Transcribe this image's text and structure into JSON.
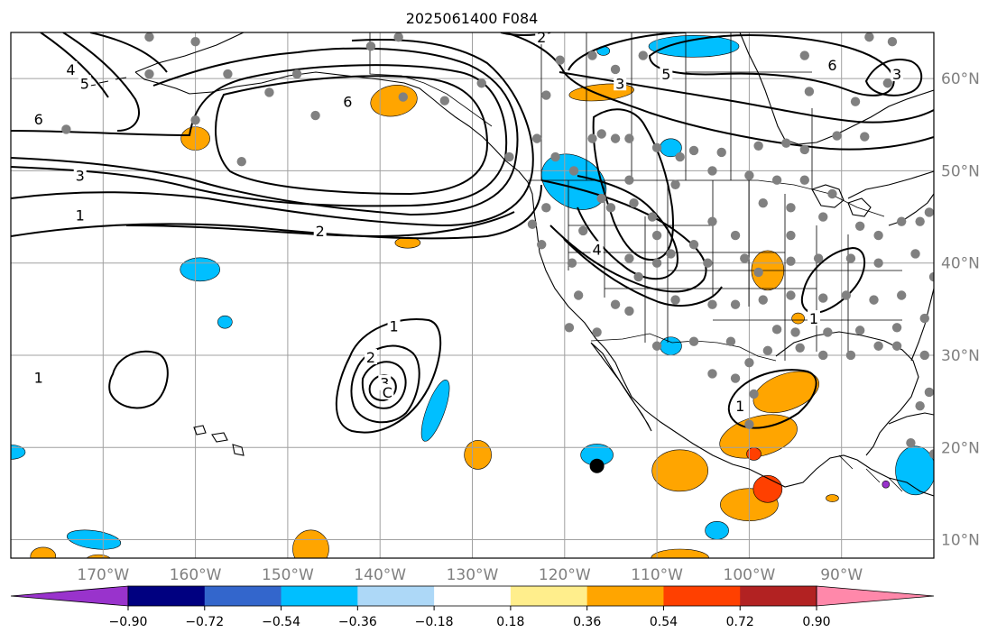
{
  "title": "2025061400 F084",
  "map": {
    "lon_range": [
      -180,
      -80
    ],
    "lat_range": [
      8,
      65
    ],
    "lon_ticks": [
      {
        "value": -170,
        "label": "170°W"
      },
      {
        "value": -160,
        "label": "160°W"
      },
      {
        "value": -150,
        "label": "150°W"
      },
      {
        "value": -140,
        "label": "140°W"
      },
      {
        "value": -130,
        "label": "130°W"
      },
      {
        "value": -120,
        "label": "120°W"
      },
      {
        "value": -110,
        "label": "110°W"
      },
      {
        "value": -100,
        "label": "100°W"
      },
      {
        "value": -90,
        "label": "90°W"
      }
    ],
    "lat_ticks": [
      {
        "value": 10,
        "label": "10°N"
      },
      {
        "value": 20,
        "label": "20°N"
      },
      {
        "value": 30,
        "label": "30°N"
      },
      {
        "value": 40,
        "label": "40°N"
      },
      {
        "value": 50,
        "label": "50°N"
      },
      {
        "value": 60,
        "label": "60°N"
      }
    ],
    "grid": true,
    "marker": {
      "lon": -116.5,
      "lat": 18,
      "color": "#000000"
    }
  },
  "contours": {
    "color": "#000000",
    "labels": [
      {
        "text": "6",
        "lon": -177,
        "lat": 55.6
      },
      {
        "text": "6",
        "lon": -143.5,
        "lat": 57.5
      },
      {
        "text": "6",
        "lon": -91,
        "lat": 61.5
      },
      {
        "text": "5",
        "lon": -172,
        "lat": 59.5
      },
      {
        "text": "5",
        "lon": -109,
        "lat": 60.5
      },
      {
        "text": "4",
        "lon": -173.5,
        "lat": 61
      },
      {
        "text": "4",
        "lon": -116.5,
        "lat": 41.5
      },
      {
        "text": "3",
        "lon": -172.5,
        "lat": 49.5
      },
      {
        "text": "3",
        "lon": -114,
        "lat": 59.5
      },
      {
        "text": "3",
        "lon": -84,
        "lat": 60.5
      },
      {
        "text": "3",
        "lon": -139.5,
        "lat": 27
      },
      {
        "text": "2",
        "lon": -146.5,
        "lat": 43.5
      },
      {
        "text": "2",
        "lon": -122.5,
        "lat": 64.5
      },
      {
        "text": "2",
        "lon": -141,
        "lat": 29.8
      },
      {
        "text": "1",
        "lon": -172.5,
        "lat": 45.2
      },
      {
        "text": "1",
        "lon": -138.5,
        "lat": 33.2
      },
      {
        "text": "1",
        "lon": -177,
        "lat": 27.6
      },
      {
        "text": "1",
        "lon": -101,
        "lat": 24.5
      },
      {
        "text": "1",
        "lon": -93,
        "lat": 34
      },
      {
        "text": "C",
        "lon": -139.2,
        "lat": 26
      }
    ]
  },
  "colorbar": {
    "colors": [
      "#9933cc",
      "#000080",
      "#3366cc",
      "#00bfff",
      "#add8f7",
      "#ffffff",
      "#ffee8c",
      "#ffa500",
      "#ff4000",
      "#b22222",
      "#ff88aa"
    ],
    "tick_labels": [
      "−0.90",
      "−0.72",
      "−0.54",
      "−0.36",
      "−0.18",
      "0.18",
      "0.36",
      "0.54",
      "0.72",
      "0.90"
    ]
  },
  "stations_color": "#808080",
  "shading_colors": {
    "neg_light": "#00bfff",
    "neg_mid": "#3366cc",
    "neg_strong": "#9933cc",
    "pos_light": "#ffa500",
    "pos_mid": "#ff4000",
    "pos_strong": "#b22222",
    "pos_faint": "#ffee8c"
  }
}
